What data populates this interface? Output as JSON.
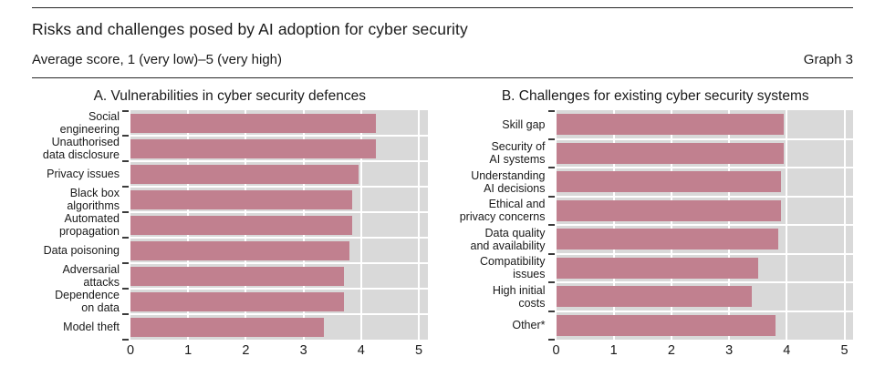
{
  "header": {
    "title": "Risks and challenges posed by AI adoption for cyber security",
    "subtitle": "Average score, 1 (very low)–5 (very high)",
    "graph_label": "Graph 3"
  },
  "colors": {
    "bar": "#c1808f",
    "plot_bg": "#d9d9d9",
    "gridline": "#ffffff",
    "text": "#1a1a1a",
    "rule": "#262626"
  },
  "chart_data": [
    {
      "type": "bar",
      "orientation": "horizontal",
      "title": "A. Vulnerabilities in cyber security defences",
      "categories": [
        "Social\nengineering",
        "Unauthorised\ndata disclosure",
        "Privacy issues",
        "Black box\nalgorithms",
        "Automated\npropagation",
        "Data poisoning",
        "Adversarial attacks",
        "Dependence\non data",
        "Model theft"
      ],
      "values": [
        4.25,
        4.25,
        3.95,
        3.85,
        3.85,
        3.8,
        3.7,
        3.7,
        3.35
      ],
      "xlabel": "",
      "ylabel": "",
      "xlim": [
        0,
        5
      ],
      "x_ticks": [
        0,
        1,
        2,
        3,
        4,
        5
      ],
      "grid": "vertical white gridlines on gray plot background",
      "legend": "none"
    },
    {
      "type": "bar",
      "orientation": "horizontal",
      "title": "B. Challenges for existing cyber security systems",
      "categories": [
        "Skill gap",
        "Security of\nAI systems",
        "Understanding\nAI decisions",
        "Ethical and\nprivacy concerns",
        "Data quality\nand availability",
        "Compatibility issues",
        "High initial\ncosts",
        "Other*"
      ],
      "values": [
        3.95,
        3.95,
        3.9,
        3.9,
        3.85,
        3.5,
        3.4,
        3.8
      ],
      "xlabel": "",
      "ylabel": "",
      "xlim": [
        0,
        5
      ],
      "x_ticks": [
        0,
        1,
        2,
        3,
        4,
        5
      ],
      "grid": "vertical white gridlines on gray plot background",
      "legend": "none"
    }
  ]
}
